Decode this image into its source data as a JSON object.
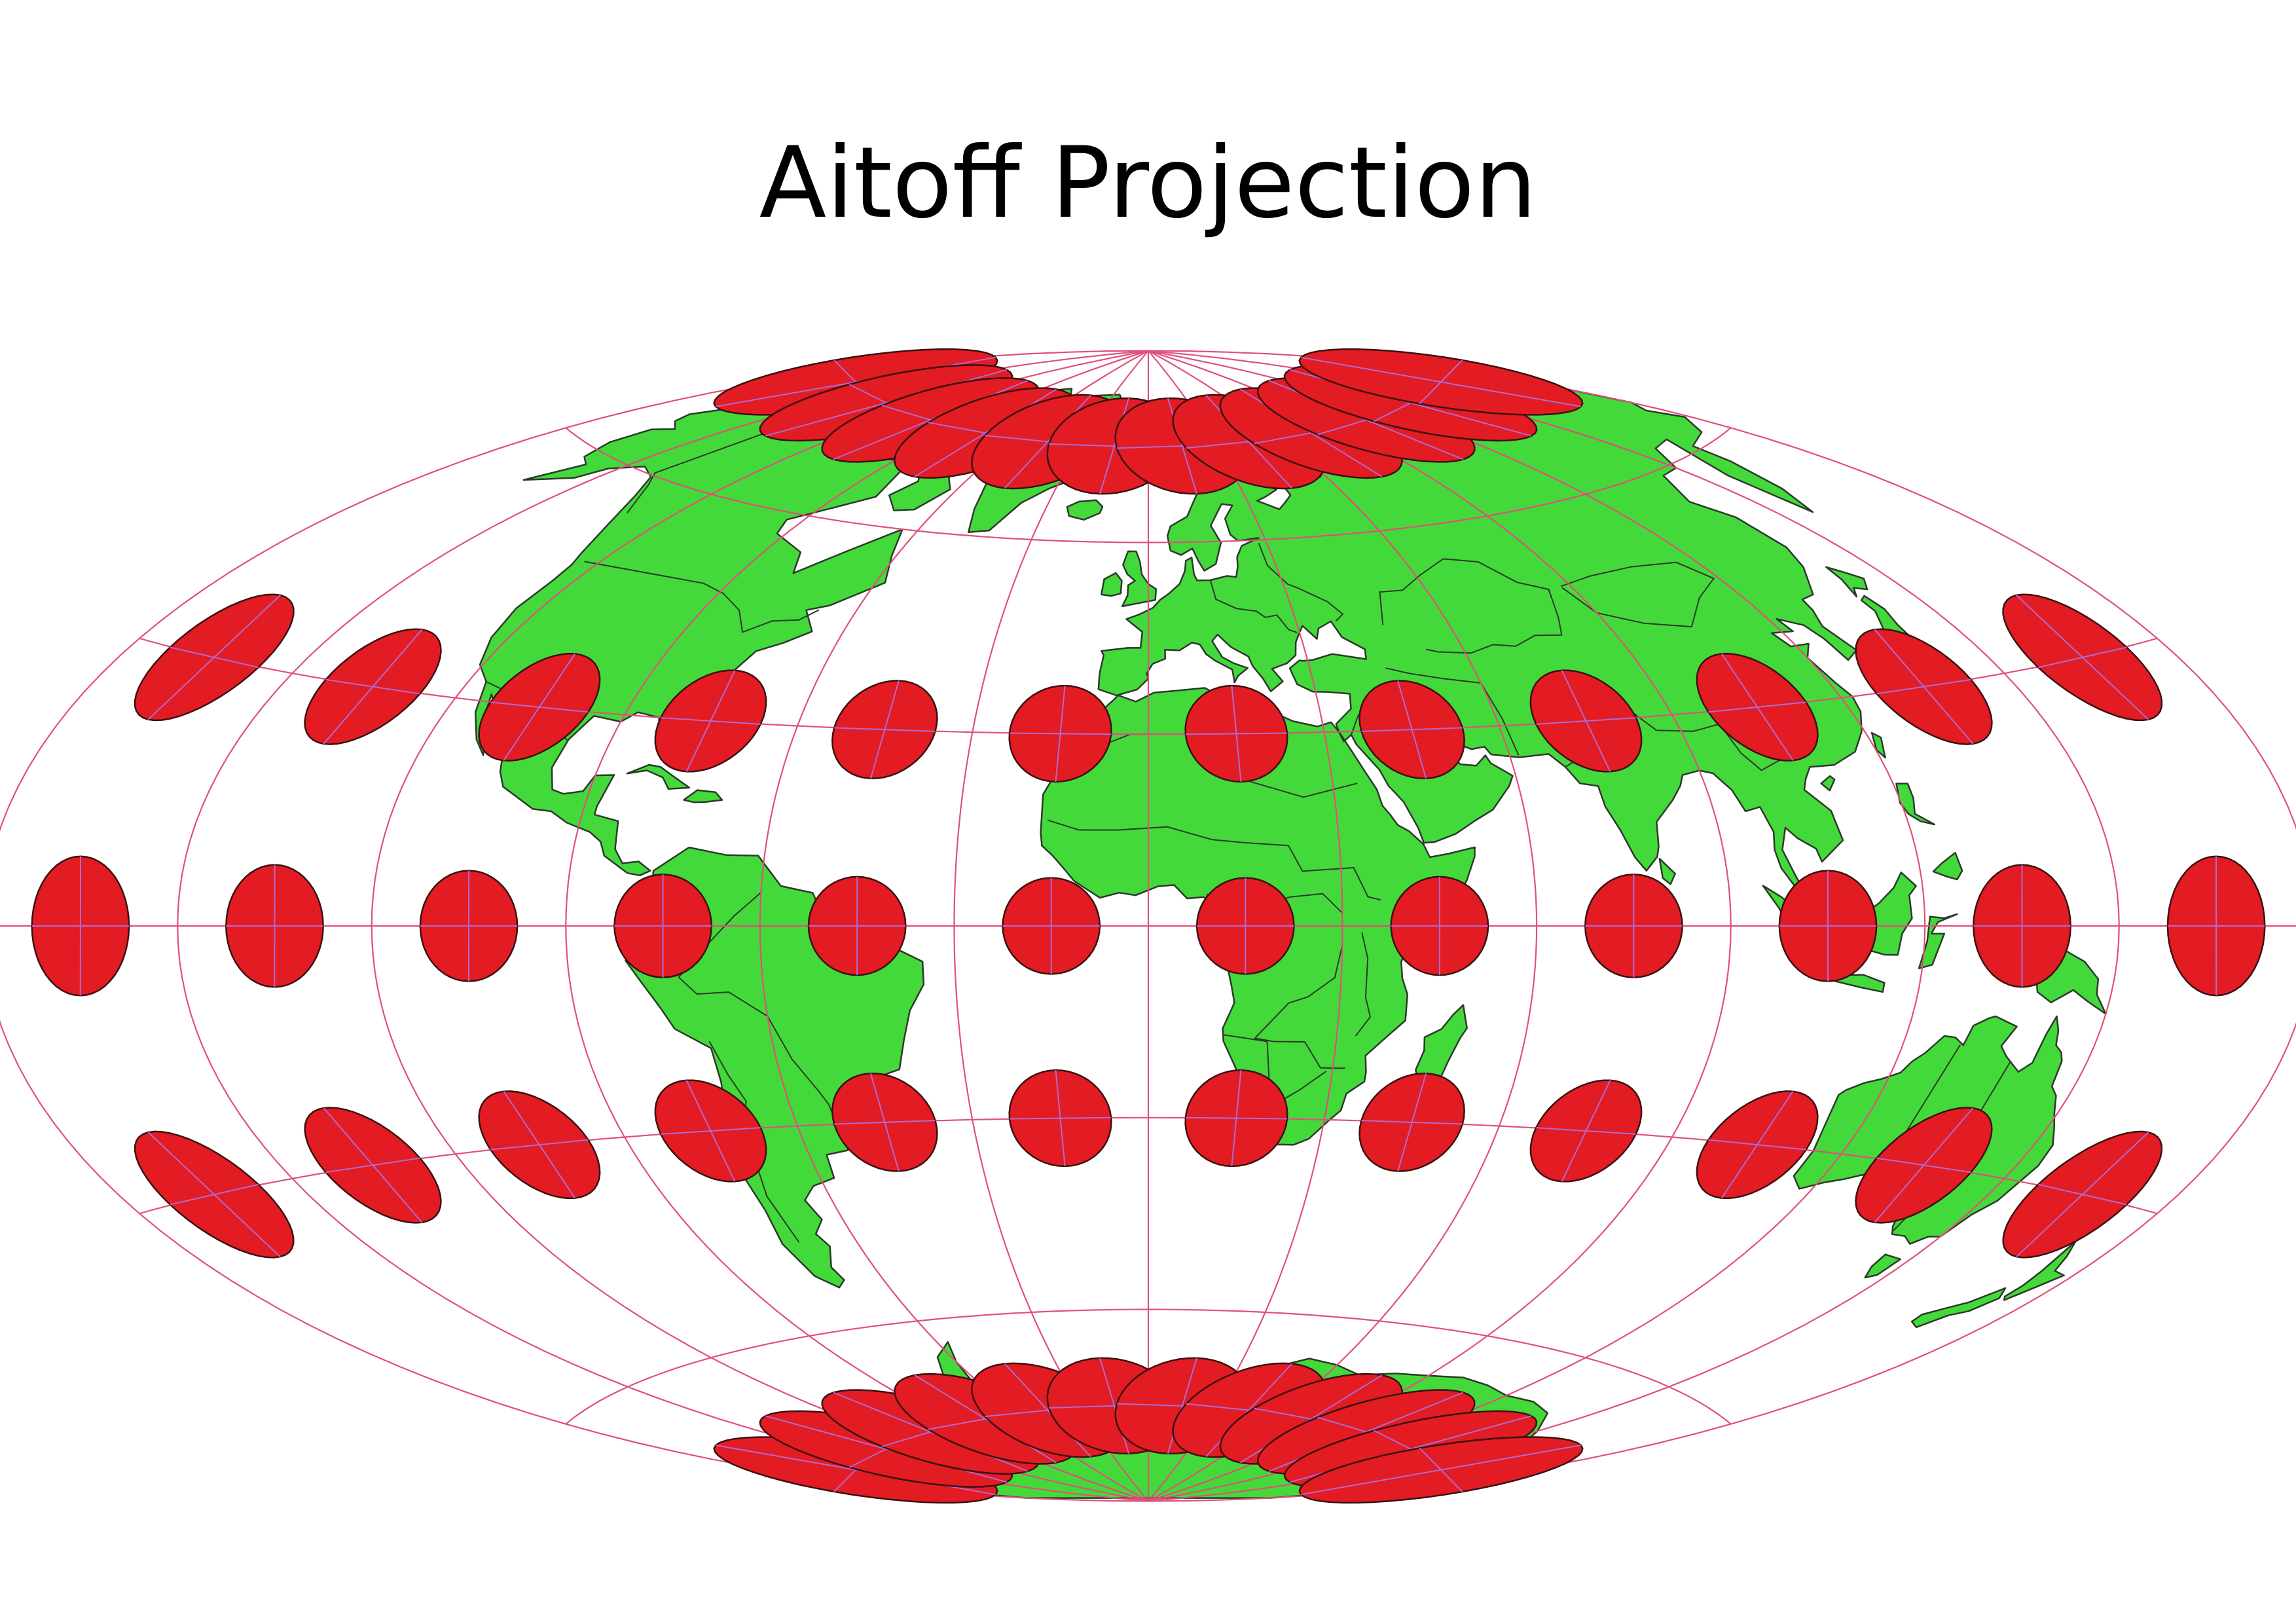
{
  "title": "Aitoff Projection",
  "map": {
    "projection": "Aitoff",
    "graticule_spacing_deg": 30,
    "indicatrix_spacing_deg": 30,
    "land_color": "#44d93a",
    "border_color": "#2a3a2a",
    "graticule_color": "#e0507a",
    "indicatrix_fill": "#e31b23",
    "indicatrix_stroke": "#3a1010",
    "indicatrix_axis_color": "#b06ad0"
  }
}
